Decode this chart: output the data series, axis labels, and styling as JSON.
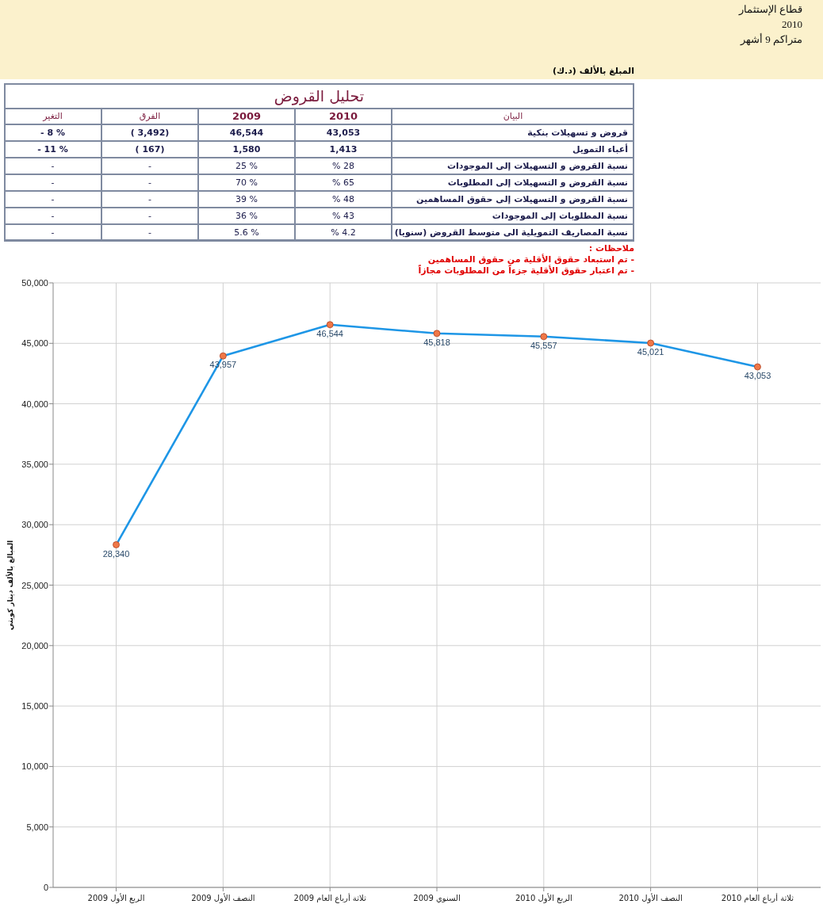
{
  "chart_data": [
    {
      "type": "other",
      "title": "تحليل القروض",
      "annotations": [
        "قطاع الإستثمار",
        "2010",
        "متراكم 9 أشهر",
        "المبلغ بالألف (د.ك)",
        "البيان",
        "2010",
        "2009",
        "الفرق",
        "التغير",
        "قروض و تسهيلات بنكية",
        "43,053",
        "46,544",
        "( 3,492)",
        "- 8 %",
        "أعباء التمويل",
        "1,413",
        "1,580",
        "( 167)",
        "- 11 %",
        "نسبة القروض و التسهيلات إلى الموجودات",
        "% 28",
        "25 %",
        "-",
        "-",
        "نسبة القروض و التسهيلات إلى المطلوبات",
        "% 65",
        "70 %",
        "-",
        "-",
        "نسبة القروض و التسهيلات إلى حقوق المساهمين",
        "% 48",
        "39 %",
        "-",
        "-",
        "نسبة المطلوبات إلى الموجودات",
        "% 43",
        "36 %",
        "-",
        "-",
        "نسبة المصاريف التمويلية الى متوسط القروض (سنويا)",
        "% 4.2",
        "5.6 %",
        "-",
        "-",
        "ملاحظات :",
        "- تم استبعاد حقوق الأقلية من حقوق المساهمين",
        "- تم اعتبار حقوق الأقلية جزءاً من المطلوبات مجازاً"
      ]
    },
    {
      "type": "line",
      "ylabel": "المبالغ بالألف دينار كويتي",
      "categories": [
        "الربع الأول 2009",
        "النصف الأول 2009",
        "ثلاثة أرباع العام 2009",
        "السنوي 2009",
        "الربع الأول 2010",
        "النصف الأول 2010",
        "ثلاثة أرباع العام 2010"
      ],
      "series": [
        {
          "color": "#1e96e6",
          "values": [
            28340,
            43957,
            46544,
            45818,
            45557,
            45021,
            43053
          ],
          "value_labels": [
            "28,340",
            "43,957",
            "46,544",
            "45,818",
            "45,557",
            "45,021",
            "43,053"
          ]
        }
      ],
      "ylim": [
        0,
        50000
      ],
      "yticks": [
        {
          "value": 0,
          "label": "0"
        },
        {
          "value": 5000,
          "label": "5,000"
        },
        {
          "value": 10000,
          "label": "10,000"
        },
        {
          "value": 15000,
          "label": "15,000"
        },
        {
          "value": 20000,
          "label": "20,000"
        },
        {
          "value": 25000,
          "label": "25,000"
        },
        {
          "value": 30000,
          "label": "30,000"
        },
        {
          "value": 35000,
          "label": "35,000"
        },
        {
          "value": 40000,
          "label": "40,000"
        },
        {
          "value": 45000,
          "label": "45,000"
        },
        {
          "value": 50000,
          "label": "50,000"
        }
      ],
      "grid": true,
      "marker": "circle",
      "line_style": "solid"
    }
  ]
}
